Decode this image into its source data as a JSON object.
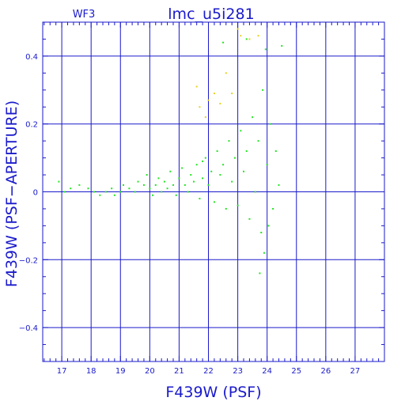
{
  "chart_data": {
    "type": "scatter",
    "corner_label": "WF3",
    "title": "lmc_u5i281",
    "xlabel": "F439W (PSF)",
    "ylabel": "F439W (PSF−APERTURE)",
    "xlim": [
      16.35,
      28.0
    ],
    "ylim": [
      -0.5,
      0.5
    ],
    "x_ticks": [
      17,
      18,
      19,
      20,
      21,
      22,
      23,
      24,
      25,
      26,
      27
    ],
    "x_tick_labels": [
      "17",
      "18",
      "19",
      "20",
      "21",
      "22",
      "23",
      "24",
      "25",
      "26",
      "27"
    ],
    "y_ticks": [
      -0.4,
      -0.2,
      0,
      0.2,
      0.4
    ],
    "y_tick_labels": [
      "−0.4",
      "−0.2",
      "0",
      "0.2",
      "0.4"
    ],
    "grid": true,
    "colors": {
      "axes": "#1a1acc",
      "series_main": "#22e622",
      "series_secondary": "#e6d21e"
    },
    "series": [
      {
        "color": "#22e622",
        "points": [
          [
            16.9,
            0.03
          ],
          [
            17.1,
            0.0
          ],
          [
            17.3,
            0.01
          ],
          [
            17.6,
            0.02
          ],
          [
            17.9,
            0.01
          ],
          [
            18.1,
            0.0
          ],
          [
            18.3,
            -0.01
          ],
          [
            18.5,
            0.0
          ],
          [
            18.7,
            0.01
          ],
          [
            18.8,
            -0.01
          ],
          [
            19.0,
            0.0
          ],
          [
            19.1,
            0.02
          ],
          [
            19.3,
            0.01
          ],
          [
            19.5,
            0.0
          ],
          [
            19.6,
            0.03
          ],
          [
            19.8,
            0.02
          ],
          [
            19.9,
            0.05
          ],
          [
            20.0,
            0.01
          ],
          [
            20.1,
            -0.01
          ],
          [
            20.2,
            0.02
          ],
          [
            20.3,
            0.04
          ],
          [
            20.4,
            0.0
          ],
          [
            20.5,
            0.03
          ],
          [
            20.6,
            0.01
          ],
          [
            20.7,
            0.06
          ],
          [
            20.8,
            0.02
          ],
          [
            20.9,
            -0.01
          ],
          [
            21.0,
            0.04
          ],
          [
            21.1,
            0.07
          ],
          [
            21.2,
            0.02
          ],
          [
            21.3,
            0.0
          ],
          [
            21.4,
            0.05
          ],
          [
            21.5,
            0.03
          ],
          [
            21.6,
            0.08
          ],
          [
            21.7,
            -0.02
          ],
          [
            21.8,
            0.04
          ],
          [
            21.9,
            0.1
          ],
          [
            22.0,
            0.02
          ],
          [
            22.1,
            0.06
          ],
          [
            22.2,
            -0.03
          ],
          [
            22.3,
            0.12
          ],
          [
            22.4,
            0.05
          ],
          [
            22.5,
            0.08
          ],
          [
            22.6,
            -0.05
          ],
          [
            22.7,
            0.15
          ],
          [
            22.8,
            0.03
          ],
          [
            22.9,
            0.1
          ],
          [
            23.0,
            -0.04
          ],
          [
            23.1,
            0.18
          ],
          [
            23.2,
            0.06
          ],
          [
            23.3,
            0.12
          ],
          [
            23.4,
            -0.08
          ],
          [
            23.5,
            0.22
          ],
          [
            23.6,
            0.0
          ],
          [
            23.7,
            0.15
          ],
          [
            23.8,
            -0.12
          ],
          [
            23.85,
            0.3
          ],
          [
            23.9,
            -0.18
          ],
          [
            24.0,
            0.08
          ],
          [
            24.1,
            0.2
          ],
          [
            24.2,
            -0.05
          ],
          [
            24.3,
            0.12
          ],
          [
            24.4,
            0.02
          ],
          [
            23.95,
            0.42
          ],
          [
            23.75,
            -0.24
          ],
          [
            24.05,
            -0.1
          ],
          [
            23.3,
            0.45
          ],
          [
            22.5,
            0.44
          ],
          [
            24.5,
            0.43
          ],
          [
            21.8,
            0.09
          ]
        ]
      },
      {
        "color": "#e6d21e",
        "points": [
          [
            23.1,
            0.46
          ],
          [
            23.4,
            0.45
          ],
          [
            22.2,
            0.29
          ],
          [
            22.6,
            0.35
          ],
          [
            22.0,
            0.27
          ],
          [
            21.7,
            0.25
          ],
          [
            21.6,
            0.31
          ],
          [
            22.8,
            0.29
          ],
          [
            23.7,
            0.46
          ],
          [
            21.9,
            0.22
          ],
          [
            23.0,
            0.48
          ],
          [
            22.4,
            0.26
          ]
        ]
      }
    ]
  }
}
